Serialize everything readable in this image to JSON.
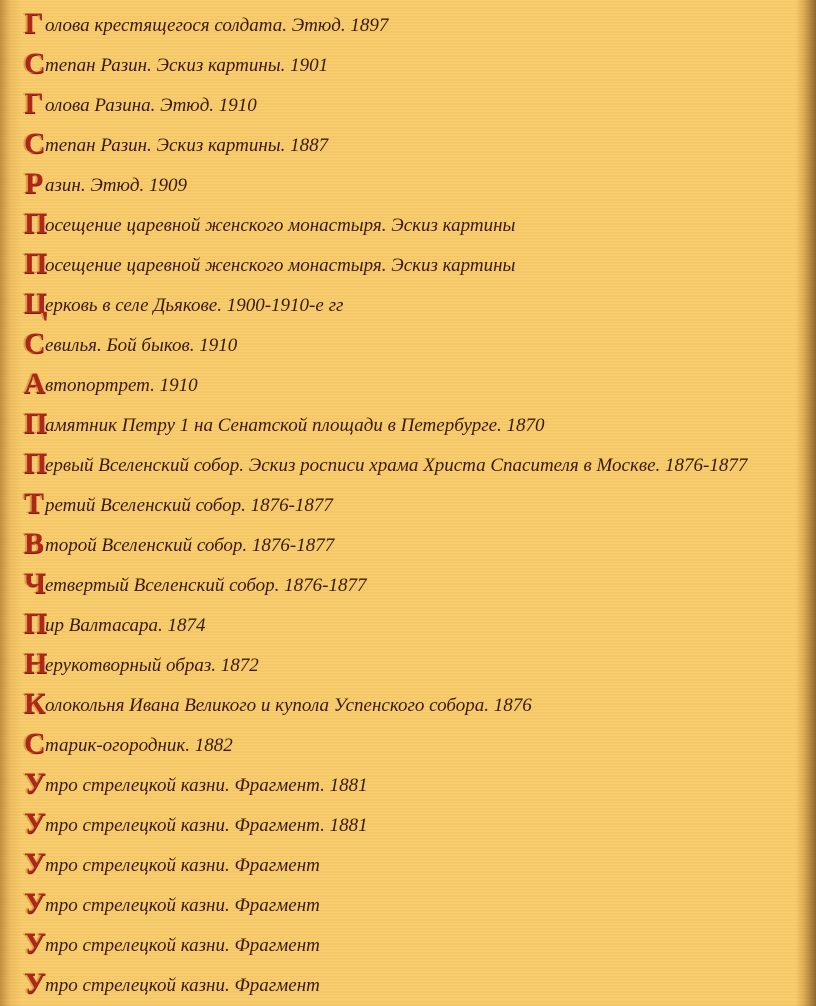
{
  "colors": {
    "background": "#f6c968",
    "text": "#3a1810",
    "initial": "#b0261a"
  },
  "items": [
    {
      "initial": "Г",
      "text": "олова крестящегося солдата. Этюд. 1897"
    },
    {
      "initial": "С",
      "text": "тепан Разин. Эскиз картины. 1901"
    },
    {
      "initial": "Г",
      "text": "олова Разина. Этюд. 1910"
    },
    {
      "initial": "С",
      "text": "тепан Разин. Эскиз картины. 1887"
    },
    {
      "initial": "Р",
      "text": "азин. Этюд. 1909"
    },
    {
      "initial": "П",
      "text": "осещение царевной женского монастыря. Эскиз картины"
    },
    {
      "initial": "П",
      "text": "осещение царевной женского монастыря. Эскиз картины"
    },
    {
      "initial": "Ц",
      "text": "ерковь в селе Дьякове. 1900-1910-е гг"
    },
    {
      "initial": "С",
      "text": "евилья. Бой быков. 1910"
    },
    {
      "initial": "А",
      "text": "втопортрет. 1910"
    },
    {
      "initial": "П",
      "text": "амятник Петру 1 на Сенатской площади в Петербурге. 1870"
    },
    {
      "initial": "П",
      "text": "ервый Вселенский собор. Эскиз росписи храма Христа Спасителя в Москве. 1876-1877"
    },
    {
      "initial": "Т",
      "text": "ретий Вселенский собор. 1876-1877"
    },
    {
      "initial": "В",
      "text": "торой Вселенский собор. 1876-1877"
    },
    {
      "initial": "Ч",
      "text": "етвертый Вселенский собор. 1876-1877"
    },
    {
      "initial": "П",
      "text": "ир Валтасара. 1874"
    },
    {
      "initial": "Н",
      "text": "ерукотворный образ. 1872"
    },
    {
      "initial": "К",
      "text": "олокольня Ивана Великого и купола Успенского собора. 1876"
    },
    {
      "initial": "С",
      "text": "тарик-огородник. 1882"
    },
    {
      "initial": "У",
      "text": "тро стрелецкой казни. Фрагмент. 1881"
    },
    {
      "initial": "У",
      "text": "тро стрелецкой казни. Фрагмент. 1881"
    },
    {
      "initial": "У",
      "text": "тро стрелецкой казни. Фрагмент"
    },
    {
      "initial": "У",
      "text": "тро стрелецкой казни. Фрагмент"
    },
    {
      "initial": "У",
      "text": "тро стрелецкой казни. Фрагмент"
    },
    {
      "initial": "У",
      "text": "тро стрелецкой казни. Фрагмент"
    }
  ]
}
